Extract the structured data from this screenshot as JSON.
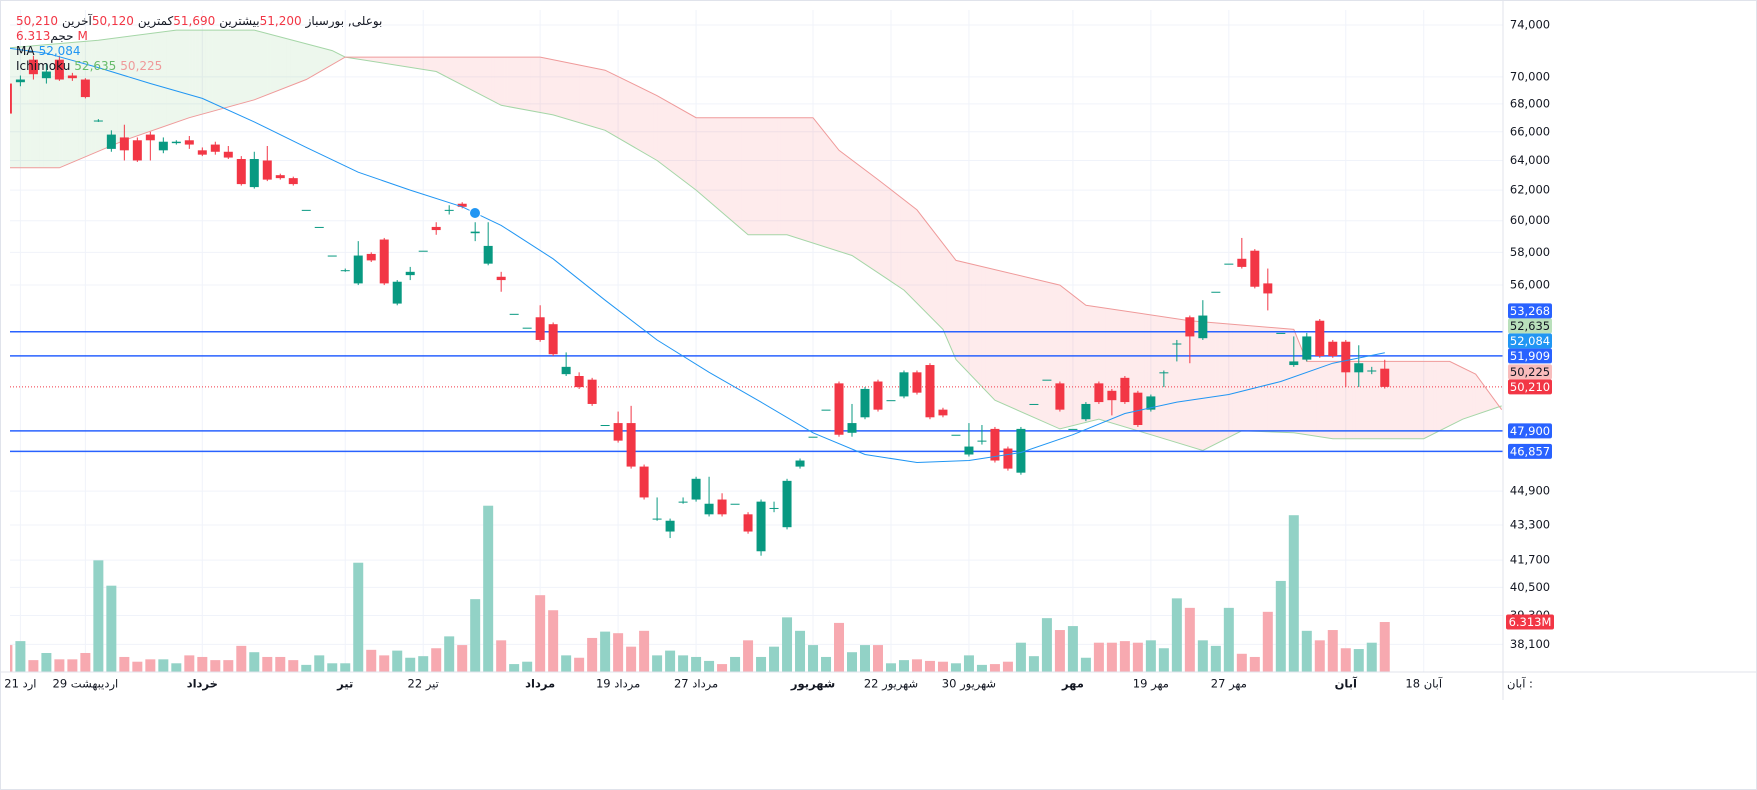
{
  "chart_data": {
    "type": "candlestick",
    "legend": {
      "symbol": "بوعلی, بورس",
      "items": [
        {
          "name": "باز",
          "value": 51200,
          "label": "51,200"
        },
        {
          "name": "بیشترین",
          "value": 51690,
          "label": "51,690"
        },
        {
          "name": "کمترین",
          "value": 50120,
          "label": "50,120"
        },
        {
          "name": "آخرین",
          "value": 50210,
          "label": "50,210"
        }
      ]
    },
    "candles": {
      "up_color": "#089981",
      "down_color": "#f23645",
      "open": [
        69500,
        69600,
        71300,
        69900,
        71300,
        70100,
        69800,
        66800,
        64800,
        65600,
        65400,
        65800,
        64700,
        65200,
        65400,
        64700,
        65100,
        64600,
        64100,
        62200,
        64000,
        63000,
        62800,
        60700,
        59600,
        57800,
        56900,
        56100,
        57900,
        58800,
        54900,
        56600,
        58100,
        59600,
        60700,
        61100,
        59200,
        57300,
        56500,
        54300,
        53500,
        54100,
        53700,
        50900,
        50800,
        50600,
        48200,
        48300,
        48300,
        46100,
        43600,
        43000,
        44400,
        44500,
        43800,
        44500,
        44300,
        43800,
        42100,
        44100,
        43200,
        46100,
        47600,
        49000,
        50400,
        47800,
        48600,
        50500,
        49500,
        49700,
        51000,
        51400,
        49000,
        47700,
        46700,
        47400,
        48000,
        47000,
        45800,
        49300,
        50600,
        50400,
        48000,
        48500,
        50400,
        50000,
        50700,
        49900,
        49000,
        51000,
        52600,
        54100,
        52900,
        55600,
        57300,
        57600,
        58100,
        56100,
        53200,
        51400,
        51700,
        53900,
        52700,
        52700,
        51000,
        51100,
        51200
      ],
      "high": [
        69600,
        70100,
        71600,
        71000,
        71600,
        70300,
        69900,
        66900,
        66100,
        66500,
        65600,
        66000,
        65600,
        65400,
        65700,
        64900,
        65300,
        65000,
        64300,
        64600,
        65000,
        63100,
        62900,
        60700,
        59600,
        57800,
        57000,
        58700,
        58000,
        58900,
        56300,
        57100,
        58100,
        59900,
        61000,
        61200,
        59900,
        59900,
        56800,
        54300,
        53500,
        54800,
        53800,
        52100,
        51000,
        50700,
        48200,
        48900,
        49200,
        46200,
        44600,
        43600,
        44600,
        45600,
        45600,
        44800,
        44300,
        43900,
        44500,
        44400,
        45500,
        46500,
        47600,
        49000,
        50500,
        49300,
        50200,
        50600,
        49500,
        51100,
        51100,
        51500,
        49100,
        47700,
        48300,
        48200,
        48100,
        47100,
        48100,
        49300,
        50600,
        50500,
        48000,
        49400,
        50500,
        50100,
        50800,
        50000,
        49800,
        51100,
        52800,
        54200,
        55100,
        55600,
        57300,
        58900,
        58200,
        57000,
        53200,
        53000,
        53200,
        54000,
        52800,
        52800,
        52500,
        51300,
        51690
      ],
      "low": [
        67200,
        69300,
        69800,
        69500,
        69700,
        69700,
        68400,
        66700,
        64600,
        64000,
        63900,
        64000,
        64500,
        65100,
        64800,
        64300,
        64400,
        64100,
        62300,
        62100,
        62600,
        62700,
        62300,
        60700,
        59600,
        57800,
        56800,
        56000,
        57400,
        56000,
        54800,
        56300,
        58100,
        59100,
        60400,
        60800,
        58700,
        57200,
        55600,
        54300,
        53500,
        52700,
        51900,
        50800,
        50100,
        49200,
        48200,
        47300,
        46000,
        44500,
        43500,
        42700,
        44300,
        44400,
        43700,
        43700,
        44300,
        42900,
        41900,
        43900,
        43100,
        46000,
        47600,
        49000,
        47600,
        47600,
        48500,
        48900,
        49500,
        49600,
        49800,
        48500,
        48600,
        47700,
        46600,
        47200,
        46300,
        45900,
        45700,
        49300,
        50600,
        48900,
        48000,
        48400,
        49300,
        48700,
        49300,
        48100,
        48900,
        50200,
        51600,
        51500,
        52800,
        55600,
        57300,
        57000,
        55800,
        54500,
        53200,
        51300,
        51600,
        51800,
        51800,
        50200,
        50200,
        50900,
        50120
      ],
      "close": [
        67300,
        69800,
        70200,
        70400,
        69800,
        69900,
        68500,
        66800,
        65800,
        64700,
        64000,
        65400,
        65300,
        65300,
        65100,
        64400,
        64600,
        64200,
        62400,
        64100,
        62700,
        62800,
        62400,
        60700,
        59600,
        57800,
        56900,
        57800,
        57500,
        56100,
        56200,
        56800,
        58100,
        59400,
        60700,
        60900,
        59300,
        58400,
        56300,
        54300,
        53500,
        52800,
        52000,
        51300,
        50200,
        49300,
        48200,
        47400,
        46100,
        44600,
        43600,
        43500,
        44400,
        45500,
        44300,
        43800,
        44300,
        43000,
        44400,
        44100,
        45400,
        46400,
        47600,
        49000,
        47700,
        48300,
        50100,
        49000,
        49500,
        51000,
        49900,
        48600,
        48700,
        47700,
        47100,
        47400,
        46400,
        46000,
        48000,
        49300,
        50600,
        49000,
        48000,
        49300,
        49400,
        49500,
        49400,
        48200,
        49700,
        51000,
        52600,
        53000,
        54200,
        55600,
        57300,
        57100,
        55900,
        55500,
        53200,
        51600,
        53000,
        51900,
        51900,
        51000,
        51500,
        51100,
        50210
      ]
    },
    "volume": {
      "name": "حجم",
      "up_color": "#92d2c6",
      "down_color": "#f7a9b0",
      "vlim": [
        0,
        83.6
      ],
      "values": [
        3.4,
        3.9,
        1.5,
        2.4,
        1.6,
        1.6,
        2.4,
        14.1,
        10.9,
        1.9,
        1.3,
        1.6,
        1.6,
        1.1,
        2.1,
        1.9,
        1.5,
        1.5,
        3.3,
        2.5,
        1.9,
        1.9,
        1.5,
        0.9,
        2.1,
        1.1,
        1.1,
        13.8,
        2.8,
        2.1,
        2.7,
        1.8,
        2.0,
        3.0,
        4.5,
        3.4,
        9.2,
        21.0,
        4.0,
        1.0,
        1.3,
        9.7,
        7.8,
        2.1,
        1.8,
        4.3,
        5.1,
        4.9,
        3.2,
        5.2,
        2.1,
        2.7,
        2.1,
        1.9,
        1.4,
        1.0,
        1.9,
        4.0,
        1.9,
        3.2,
        6.9,
        5.2,
        3.4,
        1.9,
        6.2,
        2.5,
        3.4,
        3.4,
        1.1,
        1.5,
        1.6,
        1.4,
        1.3,
        1.1,
        2.1,
        0.9,
        1.0,
        1.3,
        3.7,
        2.0,
        6.8,
        5.3,
        5.8,
        1.8,
        3.7,
        3.7,
        3.9,
        3.7,
        4.0,
        3.0,
        9.3,
        8.1,
        4.0,
        3.3,
        8.1,
        2.3,
        1.9,
        7.6,
        11.5,
        19.8,
        5.2,
        4.0,
        5.3,
        3.0,
        2.9,
        3.7,
        6.313
      ],
      "last_label": "6.313M",
      "label_color": "#f23645"
    },
    "ma": {
      "name": "MA",
      "color": "#2196f3",
      "last_label": "52,084",
      "x": [
        0,
        3,
        7,
        11,
        15,
        19,
        23,
        27,
        31,
        35,
        38,
        42,
        46,
        50,
        54,
        58,
        62,
        66,
        70,
        74,
        78,
        82,
        86,
        90,
        94,
        98,
        102,
        106
      ],
      "values": [
        72200,
        71800,
        70700,
        69500,
        68400,
        66700,
        64900,
        63200,
        62000,
        60900,
        59700,
        57600,
        55100,
        52800,
        51000,
        49400,
        47800,
        46700,
        46300,
        46400,
        46800,
        47700,
        48800,
        49400,
        49800,
        50500,
        51500,
        52084
      ]
    },
    "ichimoku": {
      "name": "Ichimoku",
      "span_a": {
        "color": "#a5d6a7",
        "fill": "rgba(76,175,80,0.10)",
        "x": [
          0,
          7,
          13,
          19,
          25,
          26,
          33,
          38,
          42,
          46,
          50,
          53,
          57,
          60,
          65,
          69,
          72,
          73,
          76,
          81,
          84,
          88,
          92,
          95,
          99,
          102,
          109,
          112,
          115
        ],
        "values": [
          72200,
          72800,
          73600,
          73600,
          72000,
          71500,
          70400,
          67900,
          67200,
          66100,
          64000,
          62000,
          59100,
          59100,
          57800,
          55700,
          53400,
          51700,
          49500,
          48000,
          48500,
          47700,
          46900,
          47900,
          47800,
          47500,
          47500,
          48500,
          49200
        ]
      },
      "span_b": {
        "color": "#ef9a9a",
        "fill": "rgba(242,54,69,0.10)",
        "x": [
          0,
          4,
          9,
          14,
          19,
          23,
          26,
          41,
          46,
          50,
          53,
          62,
          64,
          67,
          70,
          73,
          81,
          83,
          91,
          99,
          100,
          111,
          113,
          115
        ],
        "values": [
          63500,
          63500,
          65400,
          67000,
          68300,
          69800,
          71500,
          71500,
          70500,
          68600,
          67000,
          67000,
          64700,
          62700,
          60700,
          57500,
          56000,
          54800,
          53900,
          53400,
          51600,
          51600,
          50900,
          49000
        ]
      },
      "labels": [
        {
          "value": 52635,
          "label": "52,635",
          "color": "#66bb6a",
          "box": "#b9e0bb"
        },
        {
          "value": 50225,
          "label": "50,225",
          "color": "#ef9a9a",
          "box": "#f8bcbc"
        }
      ]
    },
    "last_price": {
      "value": 50210,
      "label": "50,210",
      "color": "#f23645"
    },
    "levels": [
      {
        "value": 53268,
        "label": "53,268"
      },
      {
        "value": 51909,
        "label": "51,909"
      },
      {
        "value": 47900,
        "label": "47,900"
      },
      {
        "value": 46857,
        "label": "46,857"
      }
    ],
    "level_color": "#2962ff",
    "log_scale": true,
    "grid": true,
    "ylim": [
      36990,
      75200
    ],
    "yticks": [
      {
        "value": 74000,
        "label": "74,000"
      },
      {
        "value": 70000,
        "label": "70,000"
      },
      {
        "value": 68000,
        "label": "68,000"
      },
      {
        "value": 66000,
        "label": "66,000"
      },
      {
        "value": 64000,
        "label": "64,000"
      },
      {
        "value": 62000,
        "label": "62,000"
      },
      {
        "value": 60000,
        "label": "60,000"
      },
      {
        "value": 58000,
        "label": "58,000"
      },
      {
        "value": 56000,
        "label": "56,000"
      },
      {
        "value": 44900,
        "label": "44,900"
      },
      {
        "value": 43300,
        "label": "43,300"
      },
      {
        "value": 41700,
        "label": "41,700"
      },
      {
        "value": 40500,
        "label": "40,500"
      },
      {
        "value": 39300,
        "label": "39,300"
      },
      {
        "value": 38100,
        "label": "38,100"
      }
    ],
    "xlim": [
      0.2,
      115.1
    ],
    "xticks": [
      {
        "value": 1,
        "label": "21 ارد"
      },
      {
        "value": 6,
        "label": "29 اردیبهشت"
      },
      {
        "value": 15,
        "label": "خرداد",
        "bold": true
      },
      {
        "value": 26,
        "label": "تیر",
        "bold": true
      },
      {
        "value": 32,
        "label": "22 تیر"
      },
      {
        "value": 41,
        "label": "مرداد",
        "bold": true
      },
      {
        "value": 47,
        "label": "19 مرداد"
      },
      {
        "value": 53,
        "label": "27 مرداد"
      },
      {
        "value": 62,
        "label": "شهریور",
        "bold": true
      },
      {
        "value": 68,
        "label": "22 شهریور"
      },
      {
        "value": 74,
        "label": "30 شهریور"
      },
      {
        "value": 82,
        "label": "مهر",
        "bold": true
      },
      {
        "value": 88,
        "label": "19 مهر"
      },
      {
        "value": 94,
        "label": "27 مهر"
      },
      {
        "value": 103,
        "label": "آبان",
        "bold": true
      },
      {
        "value": 109,
        "label": "18 آبان"
      }
    ],
    "x_note": "آبان :"
  }
}
